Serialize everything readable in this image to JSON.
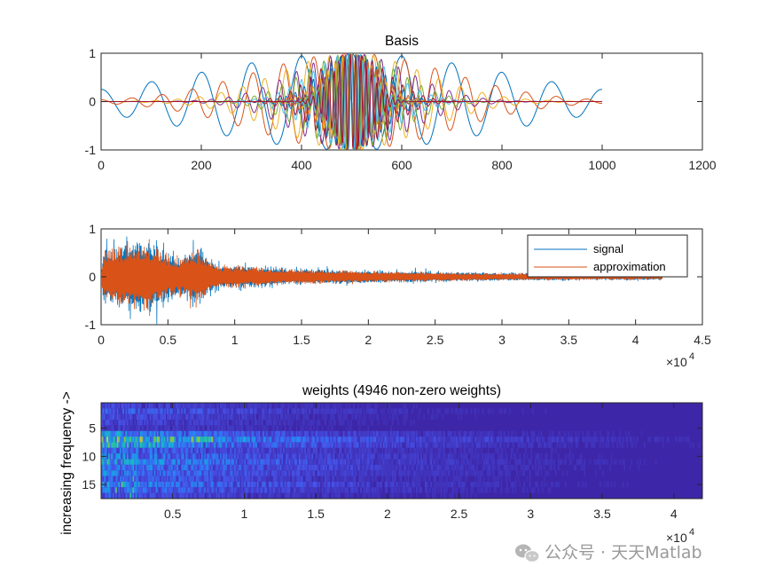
{
  "chart_data": [
    {
      "type": "line",
      "title": "Basis",
      "xlim": [
        0,
        1200
      ],
      "ylim": [
        -1,
        1
      ],
      "xticks": [
        "0",
        "200",
        "400",
        "600",
        "800",
        "1000",
        "1200"
      ],
      "yticks": [
        "-1",
        "0",
        "1"
      ],
      "series_description": "Gabor-like wavelet basis functions (sine/cosine carriers under a Gaussian envelope centered at 500, support 0–1000) at increasing frequencies",
      "center": 500,
      "support": [
        0,
        1000
      ],
      "colors": [
        "#0072BD",
        "#D95319",
        "#EDB120",
        "#7E2F8E",
        "#77AC30",
        "#4DBEEE",
        "#A2142F"
      ]
    },
    {
      "type": "line",
      "xlim": [
        0,
        45000
      ],
      "ylim": [
        -1,
        1
      ],
      "xticks": [
        "0",
        "0.5",
        "1",
        "1.5",
        "2",
        "2.5",
        "3",
        "3.5",
        "4",
        "4.5"
      ],
      "yticks": [
        "-1",
        "0",
        "1"
      ],
      "x_exponent": "×10",
      "x_exponent_power": "4",
      "legend": [
        "signal",
        "approximation"
      ],
      "legend_position": "top-right",
      "series": [
        {
          "name": "signal",
          "color": "#0072BD",
          "extent": [
            0,
            42000
          ],
          "peak_amplitude": 1.0
        },
        {
          "name": "approximation",
          "color": "#D95319",
          "extent": [
            0,
            42000
          ],
          "peak_amplitude": 0.95
        }
      ]
    },
    {
      "type": "heatmap",
      "title": "weights (4946 non-zero weights)",
      "ylabel": "increasing frequency ->",
      "xlim": [
        0,
        42000
      ],
      "ylim": [
        0.5,
        17.5
      ],
      "xticks": [
        "0.5",
        "1",
        "1.5",
        "2",
        "2.5",
        "3",
        "3.5",
        "4"
      ],
      "yticks": [
        "5",
        "10",
        "15"
      ],
      "x_exponent": "×10",
      "x_exponent_power": "4",
      "rows": 17,
      "colormap": "parula",
      "background_color": "#3E26A8"
    }
  ],
  "watermark": {
    "text": "公众号 · 天天Matlab"
  }
}
